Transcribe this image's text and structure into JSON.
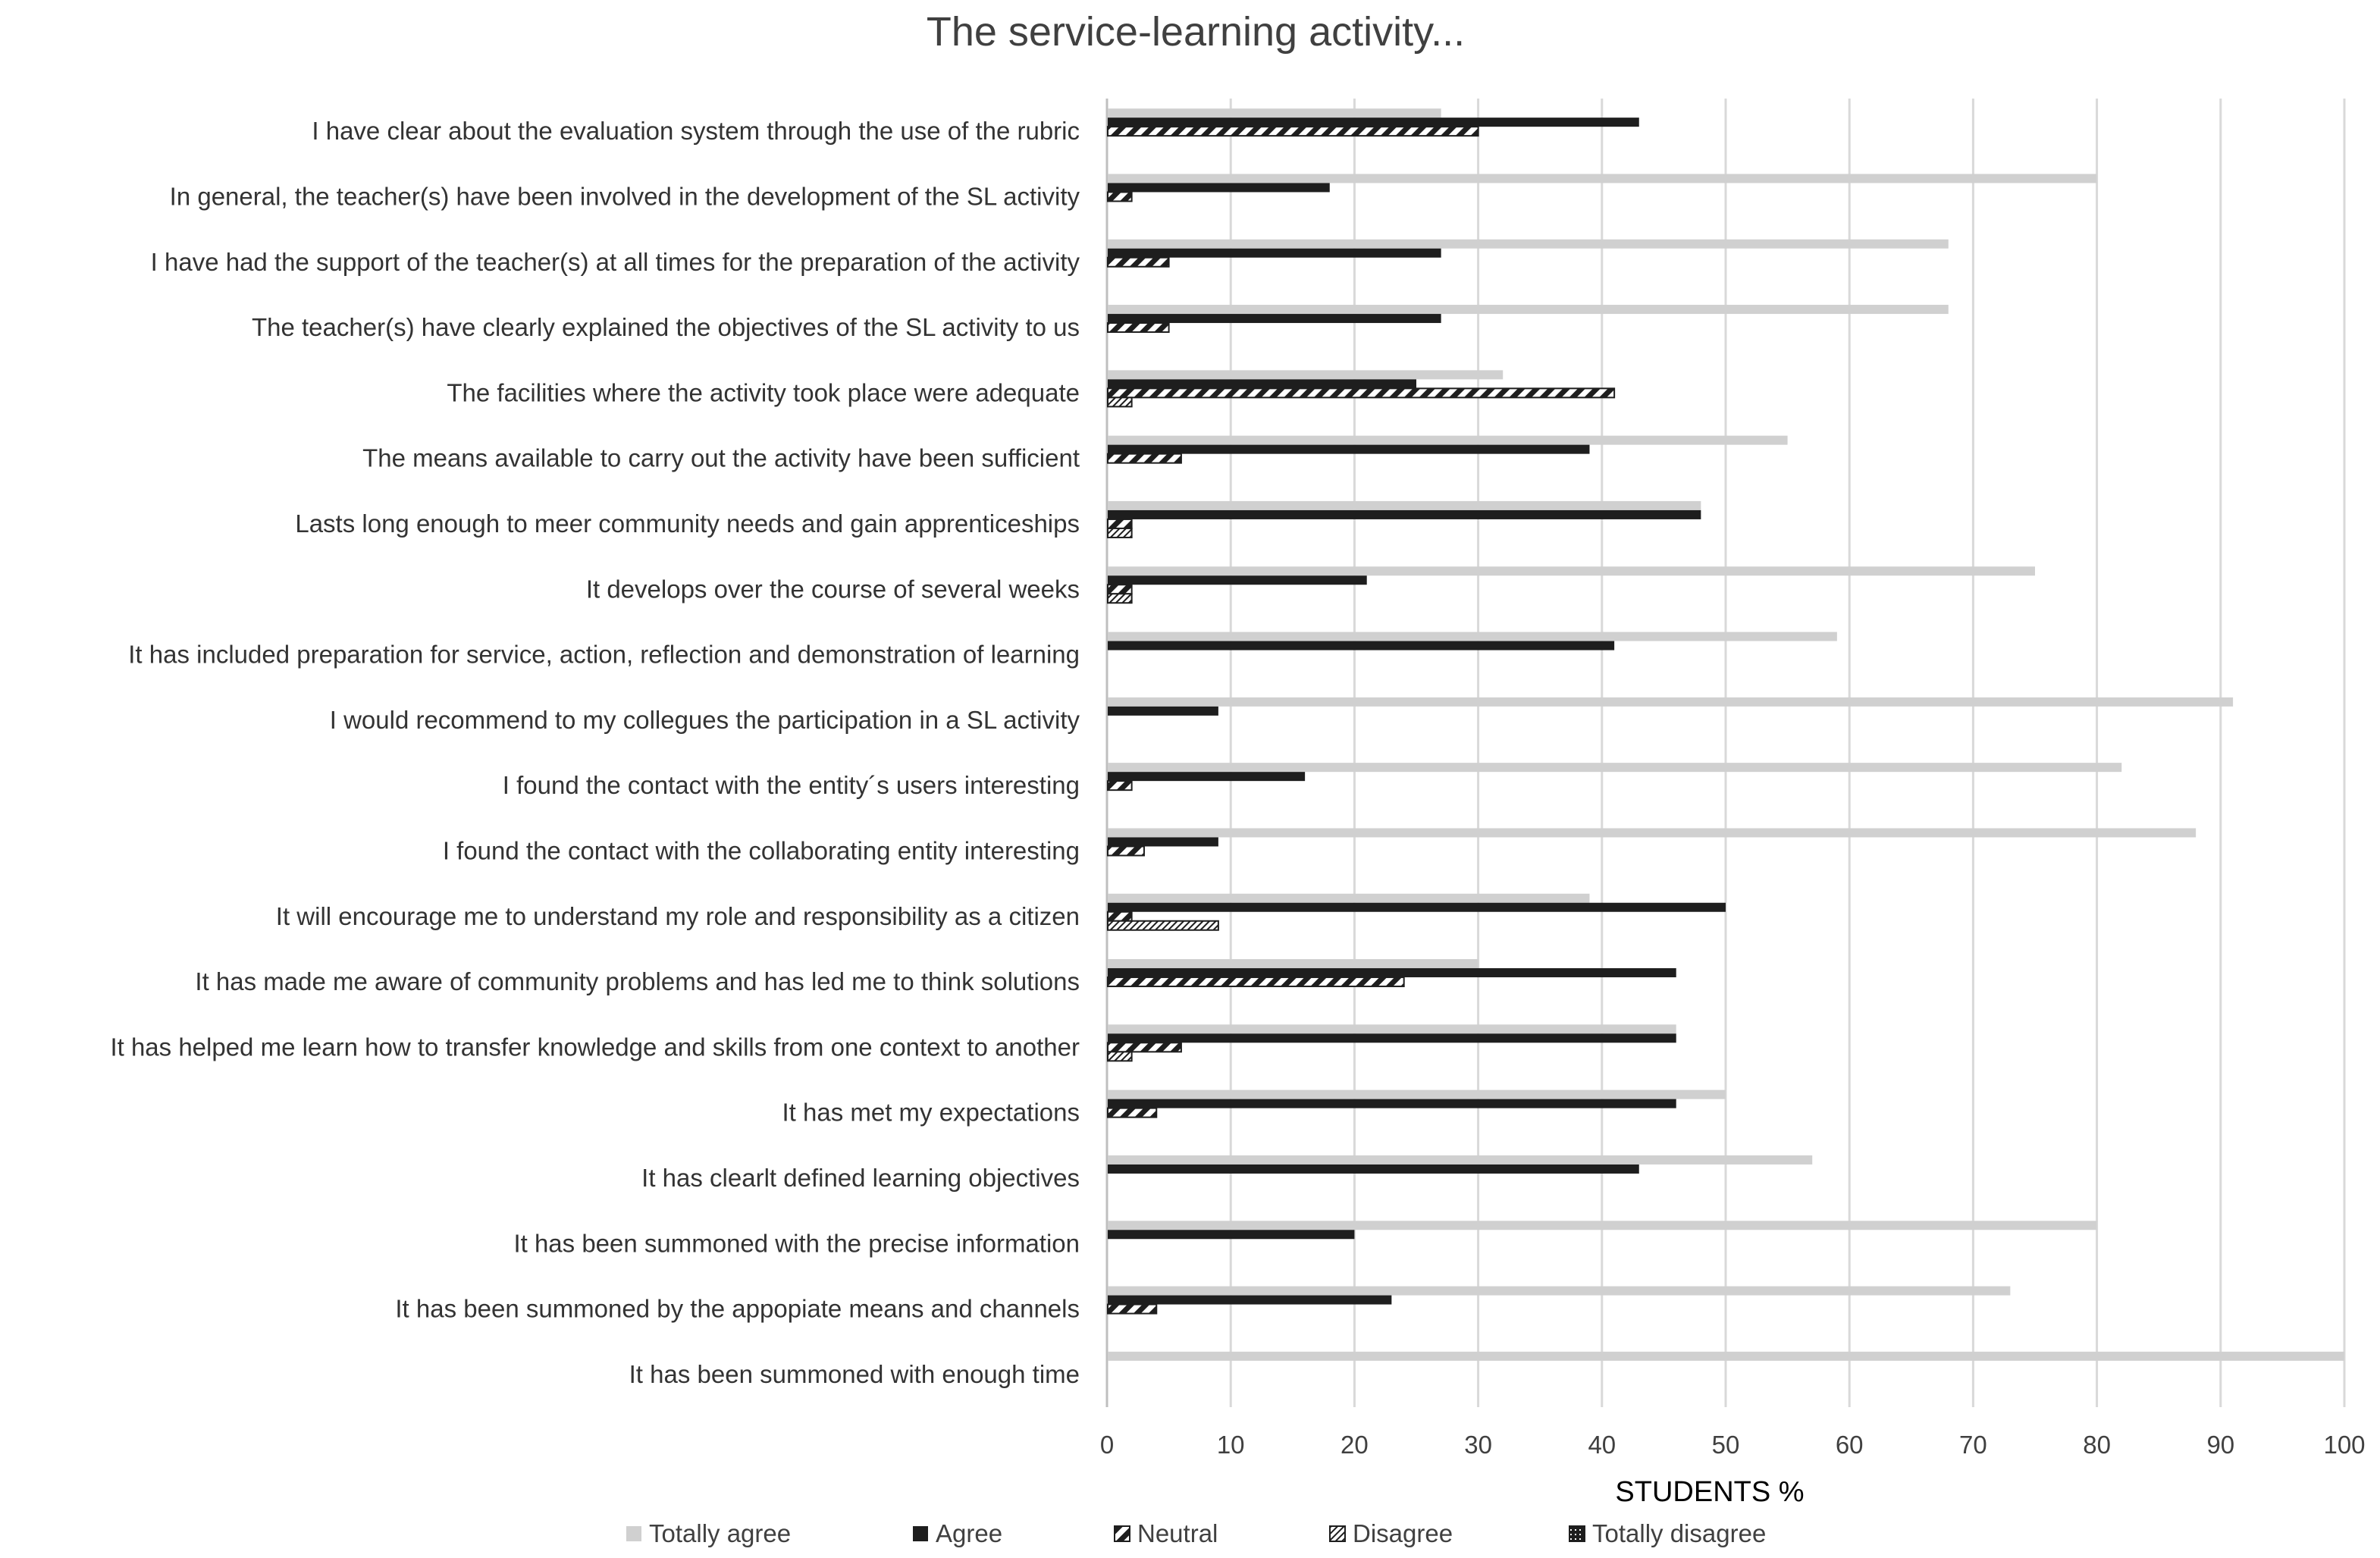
{
  "chart_data": {
    "type": "bar",
    "orientation": "horizontal",
    "title": "The service-learning activity...",
    "xlabel": "STUDENTS %",
    "ylabel": "",
    "xlim": [
      0,
      100
    ],
    "xticks": [
      0,
      10,
      20,
      30,
      40,
      50,
      60,
      70,
      80,
      90,
      100
    ],
    "grid": true,
    "legend_position": "bottom",
    "categories": [
      "I have clear about the evaluation system through the use of the rubric",
      "In general, the teacher(s) have been involved in the development of the SL activity",
      "I have had the support of the teacher(s) at all times for the preparation of the activity",
      "The teacher(s) have clearly explained the objectives of the SL activity to us",
      "The facilities where the activity took place were adequate",
      "The means available to carry out the activity have been sufficient",
      "Lasts long enough to meer community needs and gain apprenticeships",
      "It develops over the course of several weeks",
      "It has included preparation for service, action, reflection and demonstration of learning",
      "I would recommend to my collegues the participation in a SL activity",
      "I found the contact with the entity´s users interesting",
      "I found the contact with the collaborating entity interesting",
      "It will encourage me to understand my role and responsibility as a citizen",
      "It has made me aware of community problems and has led me to think solutions",
      "It has helped me learn how to transfer knowledge and skills from one context to another",
      "It has met my expectations",
      "It has clearlt defined learning objectives",
      "It has been summoned with the precise information",
      "It has been summoned by the appopiate means and channels",
      "It has been summoned with enough time"
    ],
    "series": [
      {
        "name": "Totally agree",
        "style": "light-gray",
        "values": [
          27,
          80,
          68,
          68,
          32,
          55,
          48,
          75,
          59,
          91,
          82,
          88,
          39,
          30,
          46,
          50,
          57,
          80,
          73,
          100
        ]
      },
      {
        "name": "Agree",
        "style": "black",
        "values": [
          43,
          18,
          27,
          27,
          25,
          39,
          48,
          21,
          41,
          9,
          16,
          9,
          50,
          46,
          46,
          46,
          43,
          20,
          23,
          0
        ]
      },
      {
        "name": "Neutral",
        "style": "diagonal-hatch",
        "values": [
          30,
          2,
          5,
          5,
          41,
          6,
          2,
          2,
          0,
          0,
          2,
          3,
          2,
          24,
          6,
          4,
          0,
          0,
          4,
          0
        ]
      },
      {
        "name": "Disagree",
        "style": "fine-hatch",
        "values": [
          0,
          0,
          0,
          0,
          2,
          0,
          2,
          2,
          0,
          0,
          0,
          0,
          9,
          0,
          2,
          0,
          0,
          0,
          0,
          0
        ]
      },
      {
        "name": "Totally disagree",
        "style": "dotted",
        "values": [
          0,
          0,
          0,
          0,
          0,
          0,
          0,
          0,
          0,
          0,
          0,
          0,
          0,
          0,
          0,
          0,
          0,
          0,
          0,
          0
        ]
      }
    ],
    "colors": {
      "totally_agree": "#d0d0d0",
      "agree": "#1e1e1e",
      "grid": "#d9d9d9",
      "axis": "#bfbfbf"
    }
  }
}
